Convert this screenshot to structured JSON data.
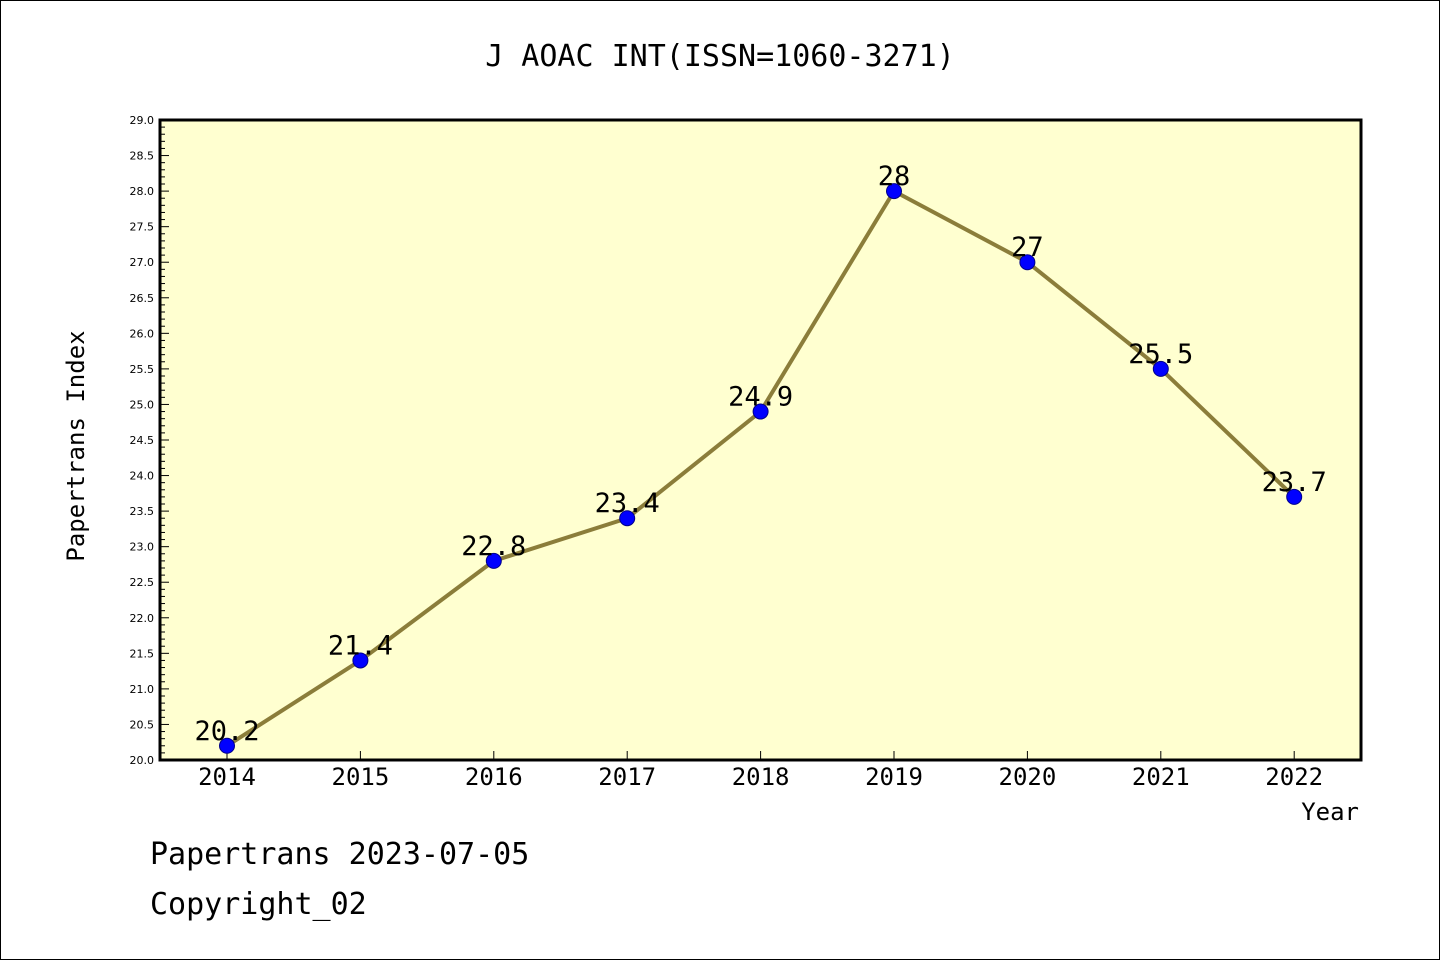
{
  "chart_data": {
    "type": "line",
    "title": "J AOAC INT(ISSN=1060-3271)",
    "xlabel": "Year",
    "ylabel": "Papertrans Index",
    "categories": [
      "2014",
      "2015",
      "2016",
      "2017",
      "2018",
      "2019",
      "2020",
      "2021",
      "2022"
    ],
    "values": [
      20.2,
      21.4,
      22.8,
      23.4,
      24.9,
      28,
      27,
      25.5,
      23.7
    ],
    "data_labels": [
      "20.2",
      "21.4",
      "22.8",
      "23.4",
      "24.9",
      "28",
      "27",
      "25.5",
      "23.7"
    ],
    "ylim": [
      20.0,
      29.0
    ],
    "yticks": [
      "20.0",
      "20.5",
      "21.0",
      "21.5",
      "22.0",
      "22.5",
      "23.0",
      "23.5",
      "24.0",
      "24.5",
      "25.0",
      "25.5",
      "26.0",
      "26.5",
      "27.0",
      "27.5",
      "28.0",
      "28.5",
      "29.0"
    ],
    "grid": false,
    "colors": {
      "plot_background": "#ffffd0",
      "line": "#8b7d3a",
      "marker": "#0000ff",
      "frame": "#000000"
    }
  },
  "footer": {
    "line1": "Papertrans 2023-07-05",
    "line2": "Copyright_02"
  }
}
